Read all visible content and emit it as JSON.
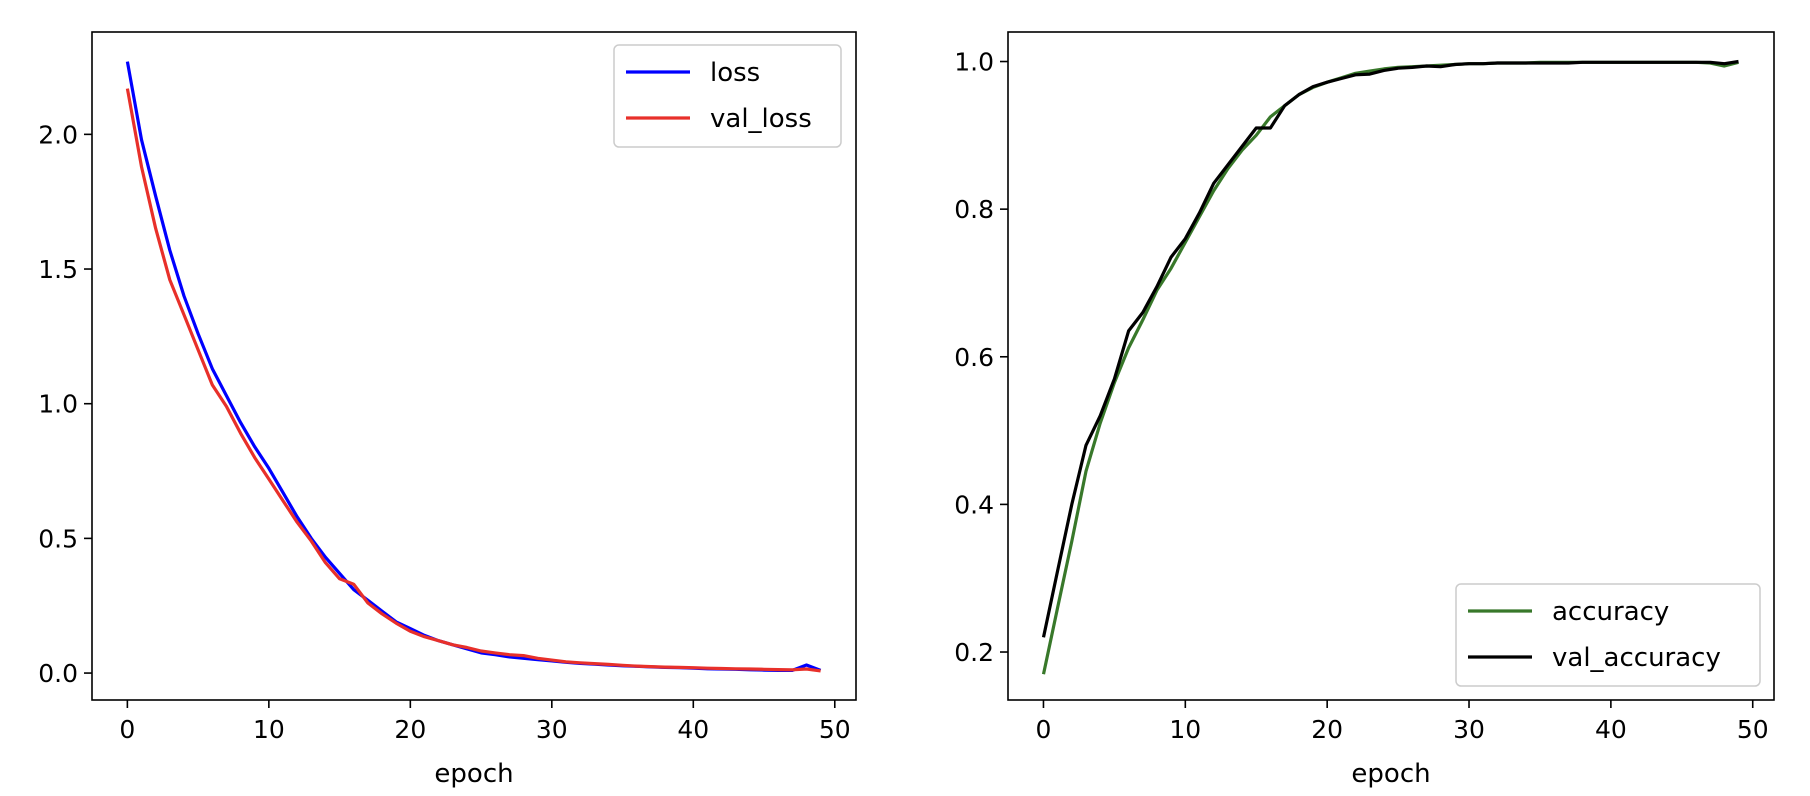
{
  "chart_data": [
    {
      "type": "line",
      "title": "",
      "xlabel": "epoch",
      "ylabel": "",
      "xlim": [
        -2.5,
        51.5
      ],
      "ylim": [
        -0.1,
        2.38
      ],
      "xticks": [
        0,
        10,
        20,
        30,
        40,
        50
      ],
      "yticks": [
        0.0,
        0.5,
        1.0,
        1.5,
        2.0
      ],
      "ytick_labels": [
        "0.0",
        "0.5",
        "1.0",
        "1.5",
        "2.0"
      ],
      "grid": false,
      "legend_position": "upper right",
      "x": [
        0,
        1,
        2,
        3,
        4,
        5,
        6,
        7,
        8,
        9,
        10,
        11,
        12,
        13,
        14,
        15,
        16,
        17,
        18,
        19,
        20,
        21,
        22,
        23,
        24,
        25,
        26,
        27,
        28,
        29,
        30,
        31,
        32,
        33,
        34,
        35,
        36,
        37,
        38,
        39,
        40,
        41,
        42,
        43,
        44,
        45,
        46,
        47,
        48,
        49
      ],
      "series": [
        {
          "name": "loss",
          "color": "#0000ff",
          "values": [
            2.27,
            1.98,
            1.77,
            1.57,
            1.4,
            1.26,
            1.13,
            1.03,
            0.93,
            0.84,
            0.76,
            0.67,
            0.58,
            0.5,
            0.43,
            0.37,
            0.31,
            0.27,
            0.23,
            0.19,
            0.165,
            0.14,
            0.12,
            0.105,
            0.09,
            0.075,
            0.068,
            0.06,
            0.055,
            0.05,
            0.045,
            0.04,
            0.036,
            0.033,
            0.03,
            0.027,
            0.025,
            0.023,
            0.021,
            0.02,
            0.018,
            0.016,
            0.015,
            0.014,
            0.012,
            0.011,
            0.01,
            0.01,
            0.03,
            0.01
          ]
        },
        {
          "name": "val_loss",
          "color": "#e8302a",
          "values": [
            2.17,
            1.88,
            1.65,
            1.46,
            1.33,
            1.2,
            1.07,
            0.99,
            0.89,
            0.8,
            0.72,
            0.64,
            0.56,
            0.49,
            0.41,
            0.35,
            0.33,
            0.26,
            0.22,
            0.185,
            0.155,
            0.135,
            0.12,
            0.105,
            0.095,
            0.082,
            0.075,
            0.068,
            0.065,
            0.055,
            0.048,
            0.042,
            0.038,
            0.035,
            0.032,
            0.029,
            0.026,
            0.024,
            0.022,
            0.021,
            0.02,
            0.018,
            0.017,
            0.016,
            0.015,
            0.014,
            0.013,
            0.012,
            0.015,
            0.008
          ]
        }
      ]
    },
    {
      "type": "line",
      "title": "",
      "xlabel": "epoch",
      "ylabel": "",
      "xlim": [
        -2.5,
        51.5
      ],
      "ylim": [
        0.135,
        1.04
      ],
      "xticks": [
        0,
        10,
        20,
        30,
        40,
        50
      ],
      "yticks": [
        0.2,
        0.4,
        0.6,
        0.8,
        1.0
      ],
      "ytick_labels": [
        "0.2",
        "0.4",
        "0.6",
        "0.8",
        "1.0"
      ],
      "grid": false,
      "legend_position": "lower right",
      "x": [
        0,
        1,
        2,
        3,
        4,
        5,
        6,
        7,
        8,
        9,
        10,
        11,
        12,
        13,
        14,
        15,
        16,
        17,
        18,
        19,
        20,
        21,
        22,
        23,
        24,
        25,
        26,
        27,
        28,
        29,
        30,
        31,
        32,
        33,
        34,
        35,
        36,
        37,
        38,
        39,
        40,
        41,
        42,
        43,
        44,
        45,
        46,
        47,
        48,
        49
      ],
      "series": [
        {
          "name": "accuracy",
          "color": "#38782a",
          "values": [
            0.17,
            0.26,
            0.35,
            0.445,
            0.51,
            0.565,
            0.612,
            0.65,
            0.69,
            0.72,
            0.755,
            0.79,
            0.825,
            0.855,
            0.88,
            0.9,
            0.925,
            0.94,
            0.955,
            0.965,
            0.972,
            0.978,
            0.984,
            0.987,
            0.99,
            0.992,
            0.993,
            0.994,
            0.995,
            0.996,
            0.997,
            0.997,
            0.998,
            0.998,
            0.998,
            0.999,
            0.999,
            0.999,
            0.999,
            0.999,
            0.999,
            0.999,
            0.999,
            0.999,
            0.999,
            0.999,
            0.999,
            0.998,
            0.994,
            0.999
          ]
        },
        {
          "name": "val_accuracy",
          "color": "#000000",
          "values": [
            0.22,
            0.31,
            0.4,
            0.48,
            0.52,
            0.57,
            0.635,
            0.66,
            0.695,
            0.735,
            0.76,
            0.795,
            0.835,
            0.86,
            0.885,
            0.91,
            0.91,
            0.94,
            0.955,
            0.966,
            0.972,
            0.977,
            0.982,
            0.983,
            0.988,
            0.991,
            0.992,
            0.994,
            0.993,
            0.996,
            0.997,
            0.997,
            0.998,
            0.998,
            0.998,
            0.998,
            0.998,
            0.998,
            0.999,
            0.999,
            0.999,
            0.999,
            0.999,
            0.999,
            0.999,
            0.999,
            0.999,
            0.999,
            0.997,
            1.0
          ]
        }
      ]
    }
  ]
}
